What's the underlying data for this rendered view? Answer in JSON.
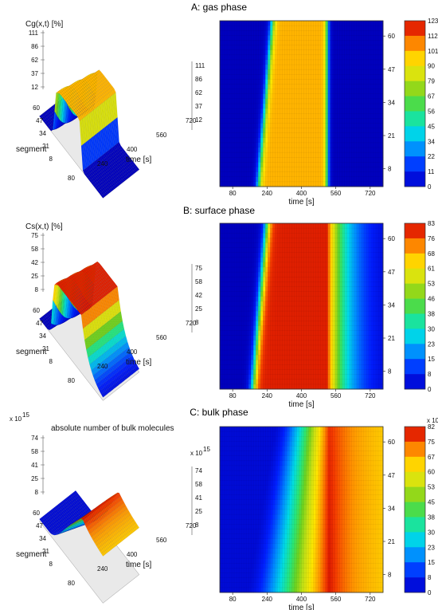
{
  "chart_data": [
    {
      "panel": "A",
      "title": "A:  gas phase",
      "type": "heatmap",
      "surface_3d": {
        "zlabel": "Cg(x,t) [%]",
        "z_ticks": [
          "111",
          "86",
          "62",
          "37",
          "12"
        ],
        "z_ticks_right": [
          "111",
          "86",
          "62",
          "37",
          "12"
        ],
        "segment_label": "segment",
        "segment_ticks": [
          "60",
          "47",
          "34",
          "21",
          "8"
        ],
        "time_label": "time [s]",
        "time_ticks": [
          "80",
          "240",
          "400",
          "560",
          "720"
        ]
      },
      "heatmap": {
        "xlabel": "time [s]",
        "x_ticks": [
          "80",
          "240",
          "400",
          "560",
          "720"
        ],
        "y_ticks": [
          "60",
          "47",
          "34",
          "21",
          "8"
        ],
        "xlim": [
          20,
          780
        ],
        "ylim": [
          1,
          66
        ]
      },
      "model": {
        "front_t0": 200,
        "front_slope": 1.0,
        "end_t": 520,
        "peak": 100,
        "low": 0,
        "rise": 8,
        "fall": 6
      },
      "colorbar": {
        "ticks": [
          "123",
          "112",
          "101",
          "90",
          "79",
          "67",
          "56",
          "45",
          "34",
          "22",
          "11",
          "0"
        ],
        "min": 0,
        "max": 123,
        "exponent": ""
      }
    },
    {
      "panel": "B",
      "title": "B:  surface phase",
      "type": "heatmap",
      "surface_3d": {
        "zlabel": "Cs(x,t) [%]",
        "z_ticks": [
          "75",
          "58",
          "42",
          "25",
          "8"
        ],
        "z_ticks_right": [
          "75",
          "58",
          "42",
          "25",
          "8"
        ],
        "segment_label": "segment",
        "segment_ticks": [
          "60",
          "47",
          "34",
          "21",
          "8"
        ],
        "time_label": "time [s]",
        "time_ticks": [
          "80",
          "240",
          "400",
          "560",
          "720"
        ]
      },
      "heatmap": {
        "xlabel": "time [s]",
        "x_ticks": [
          "80",
          "240",
          "400",
          "560",
          "720"
        ],
        "y_ticks": [
          "60",
          "47",
          "34",
          "21",
          "8"
        ],
        "xlim": [
          20,
          780
        ],
        "ylim": [
          1,
          66
        ]
      },
      "model": {
        "front_t0": 175,
        "front_slope": 1.0,
        "end_t": 520,
        "peak": 80,
        "low": 0,
        "rise": 10,
        "fall": 90
      },
      "colorbar": {
        "ticks": [
          "83",
          "76",
          "68",
          "61",
          "53",
          "46",
          "38",
          "30",
          "23",
          "15",
          "8",
          "0"
        ],
        "min": 0,
        "max": 83,
        "exponent": ""
      }
    },
    {
      "panel": "C",
      "title": "C:  bulk phase",
      "type": "heatmap",
      "surface_3d": {
        "zlabel": "absolute number of bulk molecules",
        "z_multiplier": "x 10",
        "z_exponent": "15",
        "z_ticks": [
          "74",
          "58",
          "41",
          "25",
          "8"
        ],
        "z_ticks_right": [
          "74",
          "58",
          "41",
          "25",
          "8"
        ],
        "segment_label": "segment",
        "segment_ticks": [
          "60",
          "47",
          "34",
          "21",
          "8"
        ],
        "time_label": "time [s]",
        "time_ticks": [
          "80",
          "240",
          "400",
          "560",
          "720"
        ]
      },
      "heatmap": {
        "xlabel": "time [s]",
        "x_ticks": [
          "80",
          "240",
          "400",
          "560",
          "720"
        ],
        "y_ticks": [
          "60",
          "47",
          "34",
          "21",
          "8"
        ],
        "xlim": [
          20,
          780
        ],
        "ylim": [
          1,
          66
        ]
      },
      "model": {
        "front_t0": 210,
        "front_slope": 2.0,
        "peak_t": 530,
        "peak": 80,
        "low": 3,
        "rise": 170,
        "fall": 90
      },
      "colorbar": {
        "ticks": [
          "82",
          "75",
          "67",
          "60",
          "53",
          "45",
          "38",
          "30",
          "23",
          "15",
          "8",
          "0"
        ],
        "min": 0,
        "max": 82,
        "multiplier": "x 10",
        "exponent": "15"
      }
    }
  ]
}
